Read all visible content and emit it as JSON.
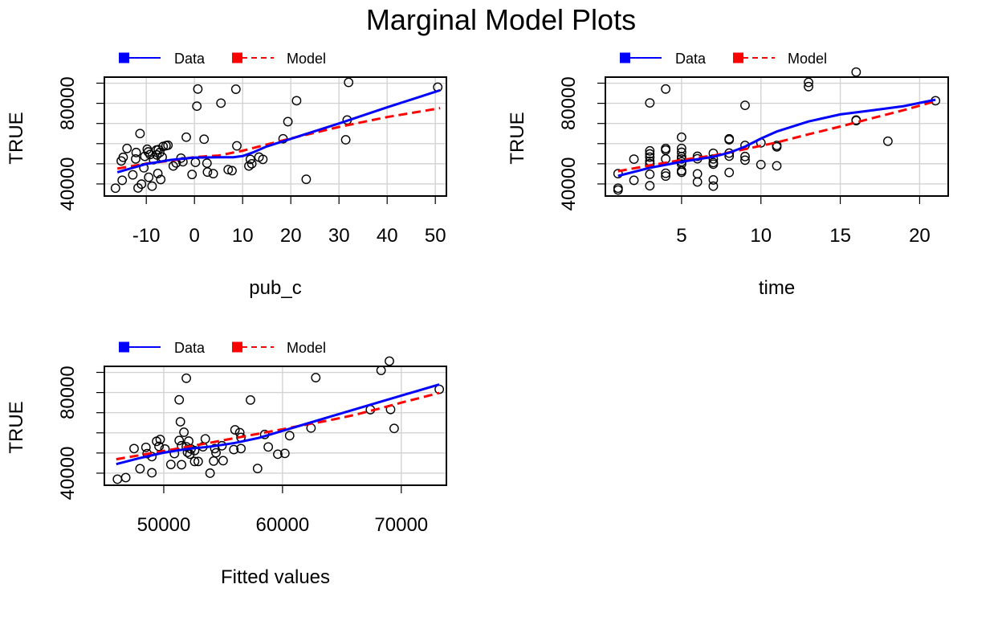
{
  "figure": {
    "title": "Marginal Model Plots"
  },
  "colors": {
    "data": "#0000ff",
    "model": "#ff0000",
    "grid": "#d3d3d3",
    "points": "#000000"
  },
  "legend": {
    "data_label": "Data",
    "model_label": "Model",
    "placement": "top-left, outside plot area"
  },
  "chart_data": [
    {
      "type": "scatter",
      "xlabel": "pub_c",
      "ylabel": "TRUE",
      "xlim": [
        -18,
        52
      ],
      "ylim": [
        34000,
        93000
      ],
      "x_ticks": [
        -10,
        0,
        10,
        20,
        30,
        40,
        50
      ],
      "x_tick_labels": [
        "-10",
        "0",
        "10",
        "20",
        "30",
        "40",
        "50"
      ],
      "y_ticks": [
        40000,
        80000
      ],
      "y_tick_labels": [
        "40000",
        "80000"
      ],
      "grid": true,
      "points": [
        [
          -16.4,
          37.9
        ],
        [
          -15.2,
          51.4
        ],
        [
          -14.8,
          53.2
        ],
        [
          -15.0,
          41.8
        ],
        [
          -14.0,
          57.6
        ],
        [
          -12.8,
          44.5
        ],
        [
          -12.1,
          55.6
        ],
        [
          -12.2,
          52.4
        ],
        [
          -11.7,
          38.0
        ],
        [
          -11.3,
          65.0
        ],
        [
          -11.0,
          39.9
        ],
        [
          -10.5,
          48.0
        ],
        [
          -10.3,
          53.7
        ],
        [
          -9.8,
          57.2
        ],
        [
          -9.6,
          55.9
        ],
        [
          -9.5,
          43.3
        ],
        [
          -9.2,
          54.6
        ],
        [
          -8.8,
          38.9
        ],
        [
          -8.5,
          52.0
        ],
        [
          -7.9,
          56.8
        ],
        [
          -7.8,
          54.4
        ],
        [
          -7.5,
          57.0
        ],
        [
          -7.6,
          45.2
        ],
        [
          -7.2,
          55.6
        ],
        [
          -7.0,
          42.2
        ],
        [
          -6.7,
          53.3
        ],
        [
          -6.5,
          58.6
        ],
        [
          -5.9,
          59.0
        ],
        [
          -5.5,
          59.2
        ],
        [
          -4.4,
          48.9
        ],
        [
          -3.8,
          50.4
        ],
        [
          -2.8,
          52.8
        ],
        [
          -2.4,
          51.0
        ],
        [
          -1.7,
          63.2
        ],
        [
          -0.5,
          44.7
        ],
        [
          0.2,
          50.7
        ],
        [
          0.5,
          78.6
        ],
        [
          0.7,
          87.1
        ],
        [
          2.0,
          62.2
        ],
        [
          2.6,
          50.3
        ],
        [
          2.7,
          45.9
        ],
        [
          3.9,
          45.1
        ],
        [
          5.5,
          80.1
        ],
        [
          7.0,
          47.1
        ],
        [
          7.8,
          46.6
        ],
        [
          8.6,
          87.0
        ],
        [
          8.8,
          58.9
        ],
        [
          11.3,
          48.9
        ],
        [
          11.6,
          52.2
        ],
        [
          11.9,
          50.0
        ],
        [
          13.4,
          53.3
        ],
        [
          14.2,
          52.2
        ],
        [
          18.4,
          62.4
        ],
        [
          19.4,
          70.9
        ],
        [
          21.2,
          81.3
        ],
        [
          23.2,
          42.3
        ],
        [
          31.4,
          61.9
        ],
        [
          31.7,
          71.7
        ],
        [
          32.0,
          90.4
        ],
        [
          50.5,
          88.0
        ]
      ],
      "data_curve": [
        [
          -16,
          45.8
        ],
        [
          -10,
          49.9
        ],
        [
          -5,
          51.9
        ],
        [
          0,
          53.1
        ],
        [
          5,
          53.2
        ],
        [
          8,
          53.2
        ],
        [
          10,
          53.8
        ],
        [
          12,
          55.5
        ],
        [
          15,
          58.6
        ],
        [
          20,
          62.4
        ],
        [
          30,
          70.0
        ],
        [
          40,
          78.0
        ],
        [
          51,
          86.5
        ]
      ],
      "model_curve": [
        [
          -16,
          47.6
        ],
        [
          -10,
          50.1
        ],
        [
          -5,
          51.5
        ],
        [
          0,
          53.3
        ],
        [
          5,
          54.1
        ],
        [
          10,
          56.5
        ],
        [
          20,
          62.6
        ],
        [
          30,
          68.3
        ],
        [
          40,
          73.2
        ],
        [
          51,
          77.6
        ]
      ]
    },
    {
      "type": "scatter",
      "xlabel": "time",
      "ylabel": "TRUE",
      "xlim": [
        0.2,
        22
      ],
      "ylim": [
        34000,
        93000
      ],
      "x_ticks": [
        5,
        10,
        15,
        20
      ],
      "x_tick_labels": [
        "5",
        "10",
        "15",
        "20"
      ],
      "y_ticks": [
        40000,
        80000
      ],
      "y_tick_labels": [
        "40000",
        "80000"
      ],
      "grid": true,
      "points": [
        [
          1,
          37.9
        ],
        [
          1,
          37.0
        ],
        [
          1,
          45.1
        ],
        [
          2,
          52.3
        ],
        [
          2,
          41.8
        ],
        [
          3,
          80.2
        ],
        [
          3,
          56.4
        ],
        [
          3,
          54.9
        ],
        [
          3,
          53.3
        ],
        [
          3,
          51.3
        ],
        [
          3,
          50.1
        ],
        [
          3,
          50.0
        ],
        [
          3,
          44.8
        ],
        [
          3,
          39.1
        ],
        [
          4,
          87.1
        ],
        [
          4,
          57.6
        ],
        [
          4,
          56.8
        ],
        [
          4,
          52.4
        ],
        [
          4,
          45.3
        ],
        [
          4,
          43.9
        ],
        [
          5,
          63.2
        ],
        [
          5,
          57.6
        ],
        [
          5,
          55.7
        ],
        [
          5,
          53.5
        ],
        [
          5,
          52.4
        ],
        [
          5,
          51.0
        ],
        [
          5,
          49.9
        ],
        [
          5,
          46.6
        ],
        [
          5,
          45.8
        ],
        [
          6,
          53.7
        ],
        [
          6,
          52.5
        ],
        [
          6,
          45.0
        ],
        [
          6,
          41.0
        ],
        [
          7,
          55.2
        ],
        [
          7,
          52.4
        ],
        [
          7,
          50.6
        ],
        [
          7,
          49.8
        ],
        [
          7,
          42.0
        ],
        [
          7,
          38.9
        ],
        [
          8,
          62.4
        ],
        [
          8,
          61.9
        ],
        [
          8,
          55.3
        ],
        [
          8,
          53.8
        ],
        [
          8,
          45.7
        ],
        [
          9,
          79.0
        ],
        [
          9,
          59.1
        ],
        [
          9,
          53.6
        ],
        [
          9,
          51.8
        ],
        [
          10,
          60.4
        ],
        [
          10,
          49.6
        ],
        [
          11,
          59.1
        ],
        [
          11,
          58.4
        ],
        [
          11,
          49.0
        ],
        [
          13,
          90.4
        ],
        [
          13,
          88.3
        ],
        [
          16,
          95.5
        ],
        [
          16,
          71.7
        ],
        [
          16,
          71.4
        ],
        [
          18,
          61.2
        ],
        [
          21,
          81.3
        ]
      ],
      "data_curve": [
        [
          1,
          44.0
        ],
        [
          3,
          48.0
        ],
        [
          5,
          51.0
        ],
        [
          7,
          53.5
        ],
        [
          8,
          55.5
        ],
        [
          9,
          58.5
        ],
        [
          10,
          62.5
        ],
        [
          11,
          66.0
        ],
        [
          13,
          71.0
        ],
        [
          15,
          74.5
        ],
        [
          17,
          76.5
        ],
        [
          19,
          78.6
        ],
        [
          21,
          81.8
        ]
      ],
      "model_curve": [
        [
          1,
          46.3
        ],
        [
          3,
          49.2
        ],
        [
          5,
          51.9
        ],
        [
          7,
          54.1
        ],
        [
          9,
          57.3
        ],
        [
          11,
          60.6
        ],
        [
          13,
          64.6
        ],
        [
          15,
          68.5
        ],
        [
          17,
          72.6
        ],
        [
          19,
          76.6
        ],
        [
          21,
          81.1
        ]
      ]
    },
    {
      "type": "scatter",
      "xlabel": "Fitted values",
      "ylabel": "TRUE",
      "xlim": [
        45000,
        74000
      ],
      "ylim": [
        34000,
        93000
      ],
      "x_ticks": [
        50000,
        60000,
        70000
      ],
      "x_tick_labels": [
        "50000",
        "60000",
        "70000"
      ],
      "y_ticks": [
        40000,
        80000
      ],
      "y_tick_labels": [
        "40000",
        "80000"
      ],
      "grid": true,
      "points": [
        [
          46.1,
          37.0
        ],
        [
          46.8,
          37.8
        ],
        [
          47.5,
          52.2
        ],
        [
          48.0,
          42.2
        ],
        [
          48.5,
          52.8
        ],
        [
          48.6,
          49.7
        ],
        [
          49.0,
          40.2
        ],
        [
          49.0,
          48.2
        ],
        [
          49.4,
          55.8
        ],
        [
          49.6,
          53.3
        ],
        [
          49.7,
          56.7
        ],
        [
          50.1,
          52.0
        ],
        [
          50.6,
          44.3
        ],
        [
          50.9,
          49.7
        ],
        [
          51.3,
          56.2
        ],
        [
          51.5,
          53.6
        ],
        [
          51.3,
          76.4
        ],
        [
          51.4,
          65.5
        ],
        [
          51.5,
          44.2
        ],
        [
          51.7,
          60.3
        ],
        [
          51.9,
          87.1
        ],
        [
          52.1,
          55.9
        ],
        [
          51.9,
          53.1
        ],
        [
          52.0,
          50.3
        ],
        [
          52.2,
          49.4
        ],
        [
          52.3,
          52.0
        ],
        [
          52.6,
          51.2
        ],
        [
          52.6,
          45.8
        ],
        [
          52.9,
          45.8
        ],
        [
          53.3,
          53.1
        ],
        [
          53.5,
          57.0
        ],
        [
          53.9,
          40.0
        ],
        [
          54.2,
          46.0
        ],
        [
          54.3,
          52.2
        ],
        [
          54.4,
          50.1
        ],
        [
          54.9,
          53.6
        ],
        [
          55.0,
          46.2
        ],
        [
          55.9,
          51.7
        ],
        [
          56.0,
          61.5
        ],
        [
          56.4,
          60.1
        ],
        [
          56.5,
          52.2
        ],
        [
          56.5,
          57.7
        ],
        [
          57.3,
          76.3
        ],
        [
          57.9,
          42.3
        ],
        [
          58.5,
          59.2
        ],
        [
          58.8,
          53.0
        ],
        [
          59.6,
          49.4
        ],
        [
          60.2,
          49.8
        ],
        [
          60.6,
          58.6
        ],
        [
          62.4,
          62.4
        ],
        [
          62.8,
          87.4
        ],
        [
          67.4,
          71.5
        ],
        [
          68.3,
          91.0
        ],
        [
          69.0,
          95.6
        ],
        [
          69.1,
          71.6
        ],
        [
          69.4,
          62.2
        ],
        [
          73.2,
          81.6
        ]
      ],
      "data_curve": [
        [
          46,
          44.5
        ],
        [
          48,
          47.5
        ],
        [
          50,
          50.2
        ],
        [
          52,
          52.0
        ],
        [
          54,
          53.2
        ],
        [
          56,
          55.0
        ],
        [
          58,
          57.5
        ],
        [
          60,
          61.0
        ],
        [
          62,
          64.5
        ],
        [
          64,
          68.0
        ],
        [
          66,
          71.5
        ],
        [
          68,
          75.0
        ],
        [
          70,
          78.5
        ],
        [
          73.2,
          84.0
        ]
      ],
      "model_curve": [
        [
          46,
          46.9
        ],
        [
          48,
          48.9
        ],
        [
          50,
          51.0
        ],
        [
          52,
          53.1
        ],
        [
          54,
          55.2
        ],
        [
          56,
          57.4
        ],
        [
          58,
          59.6
        ],
        [
          60,
          61.8
        ],
        [
          62,
          64.1
        ],
        [
          64,
          66.3
        ],
        [
          66,
          68.8
        ],
        [
          68,
          71.8
        ],
        [
          70,
          75.0
        ],
        [
          73.2,
          79.8
        ]
      ]
    }
  ]
}
